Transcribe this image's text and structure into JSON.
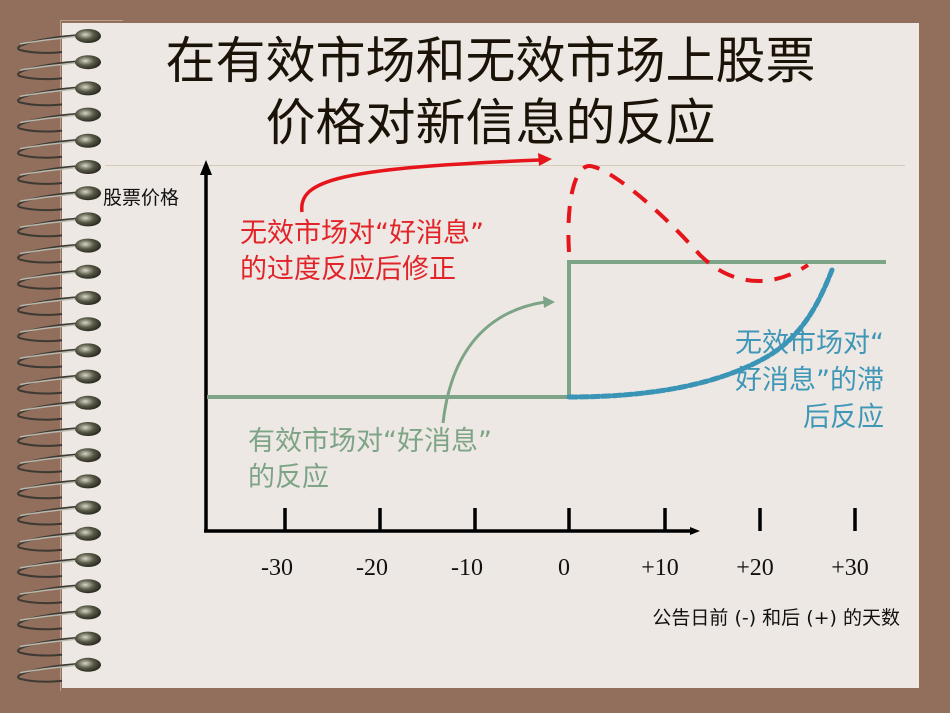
{
  "slide": {
    "title_line1": "在有效市场和无效市场上股票",
    "title_line2": "价格对新信息的反应"
  },
  "colors": {
    "background": "#926e5c",
    "page": "#ede8e3",
    "efficient": "#7da486",
    "overreaction": "#e2242a",
    "delayed": "#3f97b7"
  },
  "chart_data": {
    "type": "line",
    "title": "在有效市场和无效市场上股票价格对新信息的反应",
    "xlabel": "公告日前 (-) 和后 (+) 的天数",
    "ylabel": "股票价格",
    "xticks": [
      "-30",
      "-20",
      "-10",
      "0",
      "+10",
      "+20",
      "+30"
    ],
    "xlim": [
      -40,
      33
    ],
    "grid": false,
    "series": [
      {
        "name": "有效市场对“好消息”的反应",
        "style": "solid",
        "color": "#7da486",
        "description": "flat low level before day 0, instant jump at day 0, flat high level after",
        "x": [
          -38,
          0,
          0,
          33
        ],
        "y": [
          0,
          0,
          1,
          1
        ]
      },
      {
        "name": "无效市场对“好消息”的过度反应后修正",
        "style": "dashed",
        "color": "#e2242a",
        "description": "jumps at day 0 overshooting to a peak around +2, falls below the new level around +20, recovers by ~+25",
        "x": [
          0,
          2,
          10,
          16,
          20,
          25
        ],
        "y": [
          1,
          1.8,
          1.35,
          1.0,
          0.9,
          1.0
        ]
      },
      {
        "name": "无效市场对“好消息”的滞后反应",
        "style": "dotted",
        "color": "#3f97b7",
        "description": "starts at low level at day 0, curves upward gradually reaching new level near +28",
        "x": [
          0,
          10,
          20,
          25,
          28
        ],
        "y": [
          0,
          0.08,
          0.35,
          0.65,
          1
        ]
      }
    ],
    "annotations": [
      {
        "text": "无效市场对“好消息”的过度反应后修正",
        "color": "#e2242a"
      },
      {
        "text": "有效市场对“好消息”的反应",
        "color": "#7da486"
      },
      {
        "text": "无效市场对“好消息”的滞后反应",
        "color": "#3f97b7"
      }
    ]
  },
  "labels": {
    "ylabel": "股票价格",
    "xlabel": "公告日前 (-) 和后 (+) 的天数",
    "red_line1": "无效市场对“好消息”",
    "red_line2": "的过度反应后修正",
    "green_line1": "有效市场对“好消息”",
    "green_line2": "的反应",
    "blue_line1": "无效市场对“",
    "blue_line2": "好消息”的滞",
    "blue_line3": "后反应",
    "ticks": [
      "-30",
      "-20",
      "-10",
      "0",
      "+10",
      "+20",
      "+30"
    ]
  }
}
